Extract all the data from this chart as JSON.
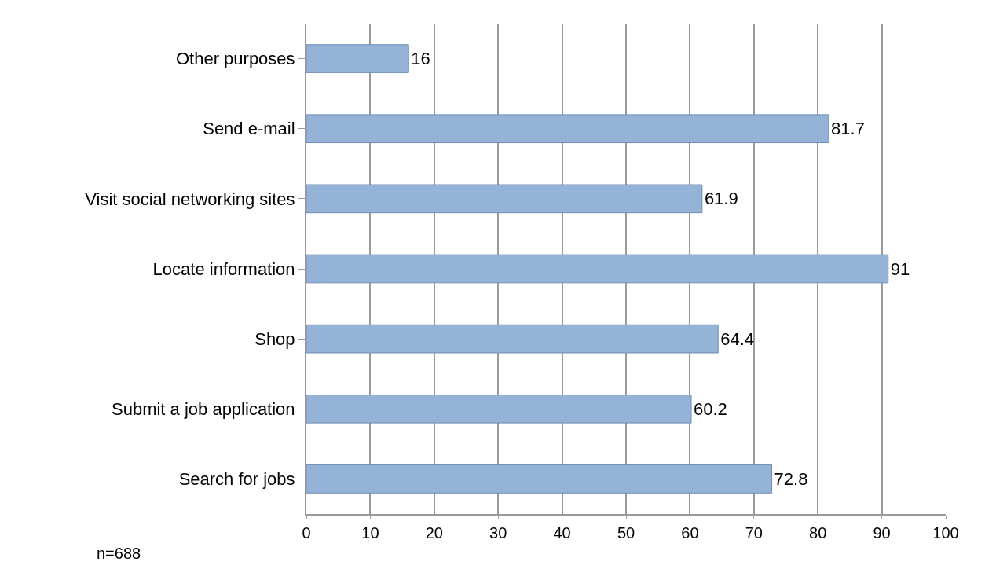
{
  "chart_data": {
    "type": "bar",
    "orientation": "horizontal",
    "categories": [
      "Other purposes",
      "Send e-mail",
      "Visit social networking sites",
      "Locate information",
      "Shop",
      "Submit a job application",
      "Search for jobs"
    ],
    "values": [
      16,
      81.7,
      61.9,
      91,
      64.4,
      60.2,
      72.8
    ],
    "color": "#95b3d7",
    "xlim": [
      0,
      100
    ],
    "xticks": [
      0,
      10,
      20,
      30,
      40,
      50,
      60,
      70,
      80,
      90,
      100
    ],
    "grid": "x",
    "data_labels": true,
    "annotations": [
      "n=688"
    ]
  }
}
